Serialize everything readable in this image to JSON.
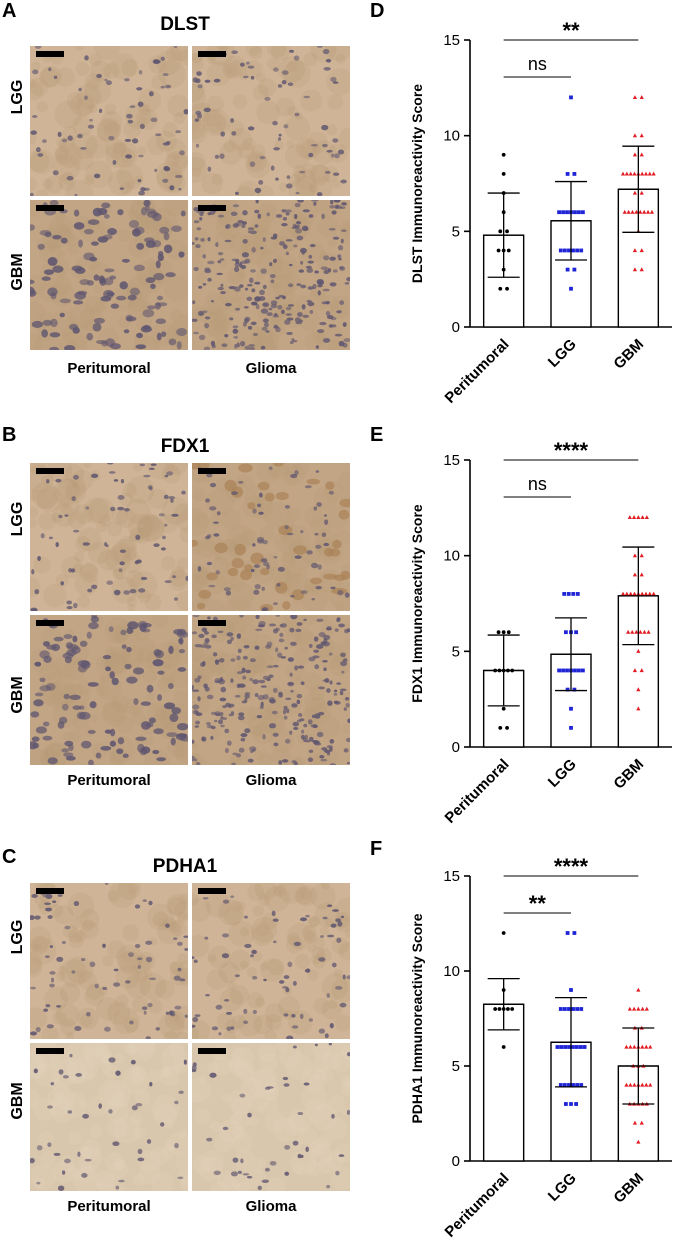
{
  "colors": {
    "tissue_light": "#cfb497",
    "tissue_mid": "#c2a585",
    "tissue_pale": "#d8c7ad",
    "nucleus": "#5f5670",
    "stain_brown": "#a98257",
    "peritumoral": "#000000",
    "lgg": "#1f24d6",
    "gbm": "#e21c22"
  },
  "ihc_panels": [
    {
      "letter": "A",
      "title": "DLST",
      "rows": [
        "LGG",
        "GBM"
      ],
      "columns": [
        "Peritumoral",
        "Glioma"
      ]
    },
    {
      "letter": "B",
      "title": "FDX1",
      "rows": [
        "LGG",
        "GBM"
      ],
      "columns": [
        "Peritumoral",
        "Glioma"
      ]
    },
    {
      "letter": "C",
      "title": "PDHA1",
      "rows": [
        "LGG",
        "GBM"
      ],
      "columns": [
        "Peritumoral",
        "Glioma"
      ]
    }
  ],
  "chart_data": [
    {
      "letter": "D",
      "type": "bar",
      "ylabel": "DLST Immunoreactivity Score",
      "ylim": [
        0,
        15
      ],
      "yticks": [
        "0",
        "5",
        "10",
        "15"
      ],
      "categories": [
        "Peritumoral",
        "LGG",
        "GBM"
      ],
      "values": [
        4.8,
        5.55,
        7.2
      ],
      "sd": [
        2.2,
        2.05,
        2.25
      ],
      "points": [
        [
          9,
          8,
          7,
          6,
          5,
          5,
          4,
          4,
          4,
          3,
          2,
          2
        ],
        [
          12,
          8,
          8,
          6,
          6,
          6,
          6,
          6,
          6,
          6,
          4,
          4,
          4,
          4,
          4,
          4,
          3,
          3,
          2
        ],
        [
          12,
          12,
          10,
          10,
          9,
          9,
          8,
          8,
          8,
          8,
          8,
          8,
          8,
          8,
          8,
          7,
          7,
          6,
          6,
          6,
          6,
          6,
          6,
          6,
          6,
          5,
          4,
          4,
          3,
          3
        ]
      ],
      "comparisons": [
        {
          "label": "ns",
          "from": 0,
          "to": 1,
          "level": "low"
        },
        {
          "label": "**",
          "from": 0,
          "to": 2,
          "level": "high"
        }
      ]
    },
    {
      "letter": "E",
      "type": "bar",
      "ylabel": "FDX1 Immunoreactivity Score",
      "ylim": [
        0,
        15
      ],
      "yticks": [
        "0",
        "5",
        "10",
        "15"
      ],
      "categories": [
        "Peritumoral",
        "LGG",
        "GBM"
      ],
      "values": [
        4.0,
        4.85,
        7.9
      ],
      "sd": [
        1.85,
        1.9,
        2.55
      ],
      "points": [
        [
          6,
          6,
          6,
          4,
          4,
          4,
          4,
          4,
          2,
          1,
          1
        ],
        [
          8,
          8,
          8,
          8,
          6,
          6,
          6,
          4,
          4,
          4,
          4,
          4,
          4,
          4,
          3,
          3,
          2,
          1
        ],
        [
          12,
          12,
          12,
          12,
          12,
          10,
          10,
          9,
          9,
          8,
          8,
          8,
          8,
          8,
          8,
          8,
          8,
          8,
          6,
          6,
          6,
          6,
          6,
          6,
          5,
          4,
          4,
          3,
          2
        ]
      ],
      "comparisons": [
        {
          "label": "ns",
          "from": 0,
          "to": 1,
          "level": "low"
        },
        {
          "label": "****",
          "from": 0,
          "to": 2,
          "level": "high"
        }
      ]
    },
    {
      "letter": "F",
      "type": "bar",
      "ylabel": "PDHA1 Immunoreactivity Score",
      "ylim": [
        0,
        15
      ],
      "yticks": [
        "0",
        "5",
        "10",
        "15"
      ],
      "categories": [
        "Peritumoral",
        "LGG",
        "GBM"
      ],
      "values": [
        8.25,
        6.25,
        5.0
      ],
      "sd": [
        1.35,
        2.35,
        2.0
      ],
      "points": [
        [
          12,
          9,
          8,
          8,
          8,
          8,
          8,
          6
        ],
        [
          12,
          12,
          9,
          8,
          8,
          8,
          8,
          8,
          8,
          6,
          6,
          6,
          6,
          6,
          6,
          6,
          6,
          4,
          4,
          4,
          4,
          4,
          4,
          3,
          3,
          3
        ],
        [
          9,
          8,
          8,
          8,
          8,
          8,
          7,
          7,
          6,
          6,
          6,
          6,
          6,
          6,
          6,
          5,
          5,
          5,
          4,
          4,
          4,
          4,
          4,
          4,
          4,
          3,
          3,
          3,
          3,
          3,
          2,
          2,
          1
        ]
      ],
      "comparisons": [
        {
          "label": "**",
          "from": 0,
          "to": 1,
          "level": "low"
        },
        {
          "label": "****",
          "from": 0,
          "to": 2,
          "level": "high"
        }
      ]
    }
  ]
}
